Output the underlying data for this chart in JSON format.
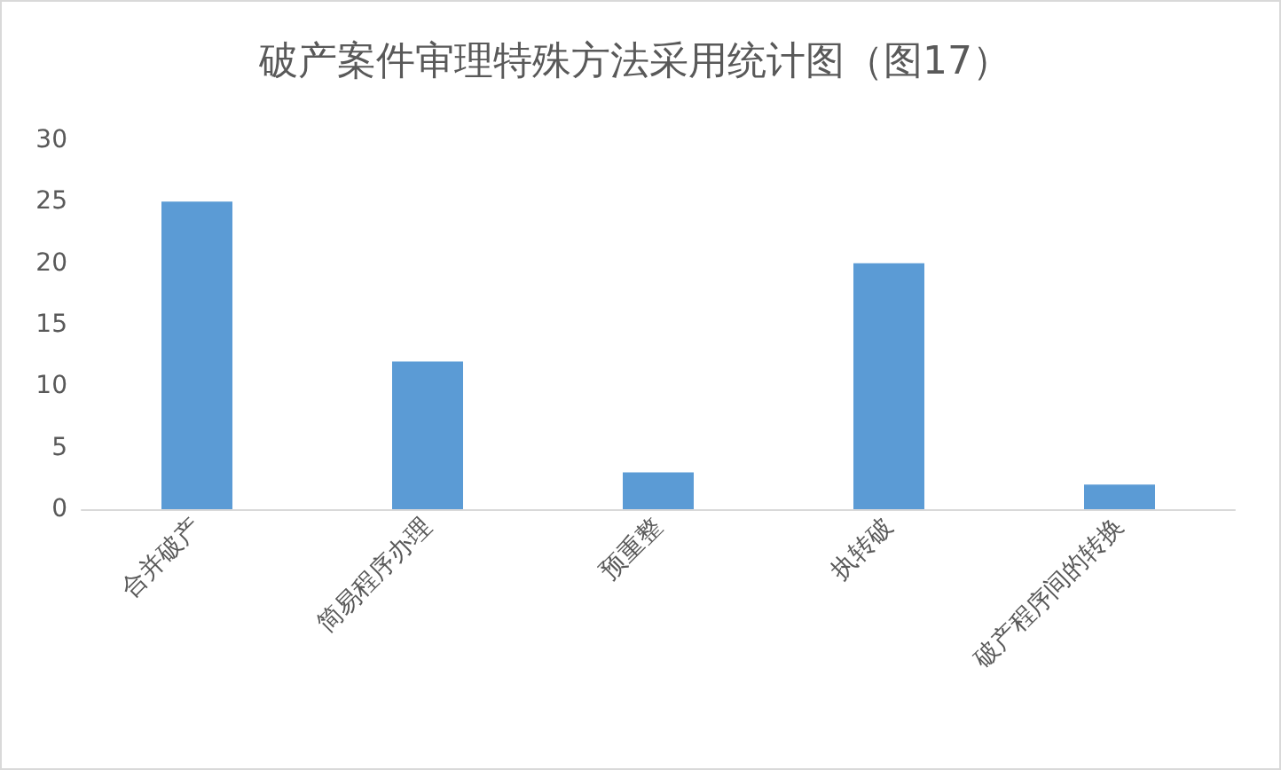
{
  "chart_data": {
    "type": "bar",
    "title": "破产案件审理特殊方法采用统计图（图17）",
    "categories": [
      "合并破产",
      "简易程序办理",
      "预重整",
      "执转破",
      "破产程序间的转换"
    ],
    "values": [
      25,
      12,
      3,
      20,
      2
    ],
    "color": "#5b9bd5",
    "ylim": [
      0,
      30
    ],
    "yticks": [
      0,
      5,
      10,
      15,
      20,
      25,
      30
    ],
    "grid": false
  }
}
